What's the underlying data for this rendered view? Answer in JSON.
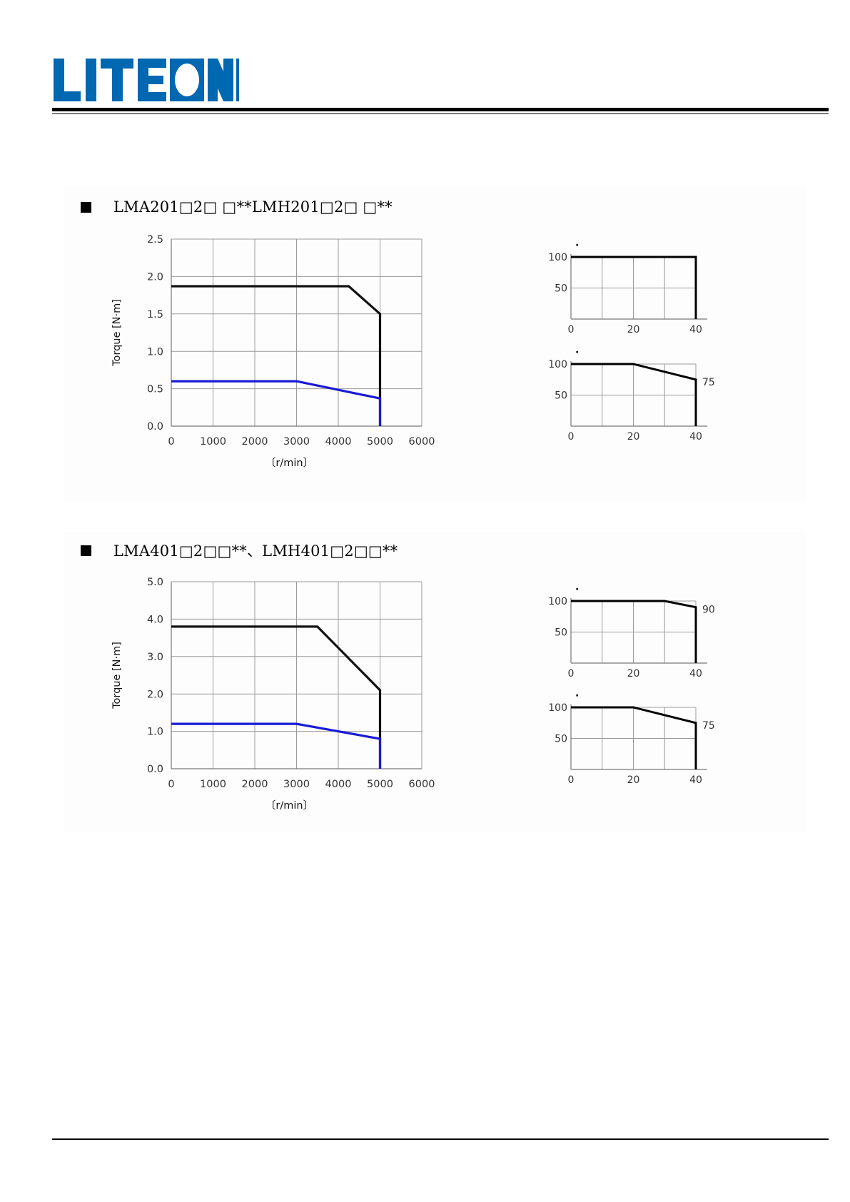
{
  "logo": {
    "text": "LITEON",
    "color": "#0067b1"
  },
  "sections": [
    {
      "title": "LMA201□2□ □**LMH201□2□ □**"
    },
    {
      "title": "LMA401□2□□**、LMH401□2□□**"
    }
  ],
  "chart_data": [
    {
      "type": "line",
      "title": "",
      "xlabel": "〔r/min〕",
      "ylabel": "Torque [N·m]",
      "xlim": [
        0,
        6000
      ],
      "ylim": [
        0,
        2.5
      ],
      "x_ticks": [
        "0",
        "1000",
        "2000",
        "3000",
        "4000",
        "5000",
        "6000"
      ],
      "y_ticks": [
        "0.0",
        "0.5",
        "1.0",
        "1.5",
        "2.0",
        "2.5"
      ],
      "grid": true,
      "series": [
        {
          "color": "#111111",
          "x": [
            0,
            4250,
            5000,
            5000
          ],
          "y": [
            1.87,
            1.87,
            1.5,
            0
          ]
        },
        {
          "color": "#1a1ad6",
          "x": [
            0,
            3000,
            5000,
            5000
          ],
          "y": [
            0.6,
            0.6,
            0.37,
            0
          ]
        }
      ]
    },
    {
      "type": "line",
      "title": "",
      "xlabel": "〔r/min〕",
      "ylabel": "Torque [N·m]",
      "xlim": [
        0,
        6000
      ],
      "ylim": [
        0,
        5
      ],
      "x_ticks": [
        "0",
        "1000",
        "2000",
        "3000",
        "4000",
        "5000",
        "6000"
      ],
      "y_ticks": [
        "0.0",
        "1.0",
        "2.0",
        "3.0",
        "4.0",
        "5.0"
      ],
      "grid": true,
      "series": [
        {
          "color": "#111111",
          "x": [
            0,
            3500,
            5000,
            5000
          ],
          "y": [
            3.8,
            3.8,
            2.1,
            0
          ]
        },
        {
          "color": "#1a1ad6",
          "x": [
            0,
            3000,
            5000,
            5000
          ],
          "y": [
            1.2,
            1.2,
            0.8,
            0
          ]
        }
      ]
    },
    {
      "type": "line",
      "title": "·",
      "xlim": [
        0,
        40
      ],
      "ylim": [
        0,
        100
      ],
      "x_ticks": [
        "0",
        "20",
        "40"
      ],
      "y_ticks": [
        "50",
        "100"
      ],
      "grid": true,
      "series": [
        {
          "color": "#000000",
          "x": [
            0,
            40,
            40
          ],
          "y": [
            100,
            100,
            0
          ]
        }
      ],
      "annotations": []
    },
    {
      "type": "line",
      "title": "·",
      "xlim": [
        0,
        40
      ],
      "ylim": [
        0,
        100
      ],
      "x_ticks": [
        "0",
        "20",
        "40"
      ],
      "y_ticks": [
        "50",
        "100"
      ],
      "grid": true,
      "series": [
        {
          "color": "#000000",
          "x": [
            0,
            20,
            40,
            40
          ],
          "y": [
            100,
            100,
            75,
            0
          ]
        }
      ],
      "annotations": [
        {
          "text": "75",
          "x": 40,
          "y": 75
        }
      ]
    },
    {
      "type": "line",
      "title": "·",
      "xlim": [
        0,
        40
      ],
      "ylim": [
        0,
        100
      ],
      "x_ticks": [
        "0",
        "20",
        "40"
      ],
      "y_ticks": [
        "50",
        "100"
      ],
      "grid": true,
      "series": [
        {
          "color": "#000000",
          "x": [
            0,
            30,
            40,
            40
          ],
          "y": [
            100,
            100,
            90,
            0
          ]
        }
      ],
      "annotations": [
        {
          "text": "90",
          "x": 40,
          "y": 90
        }
      ]
    },
    {
      "type": "line",
      "title": "·",
      "xlim": [
        0,
        40
      ],
      "ylim": [
        0,
        100
      ],
      "x_ticks": [
        "0",
        "20",
        "40"
      ],
      "y_ticks": [
        "50",
        "100"
      ],
      "grid": true,
      "series": [
        {
          "color": "#000000",
          "x": [
            0,
            20,
            40,
            40
          ],
          "y": [
            100,
            100,
            75,
            0
          ]
        }
      ],
      "annotations": [
        {
          "text": "75",
          "x": 40,
          "y": 75
        }
      ]
    }
  ]
}
